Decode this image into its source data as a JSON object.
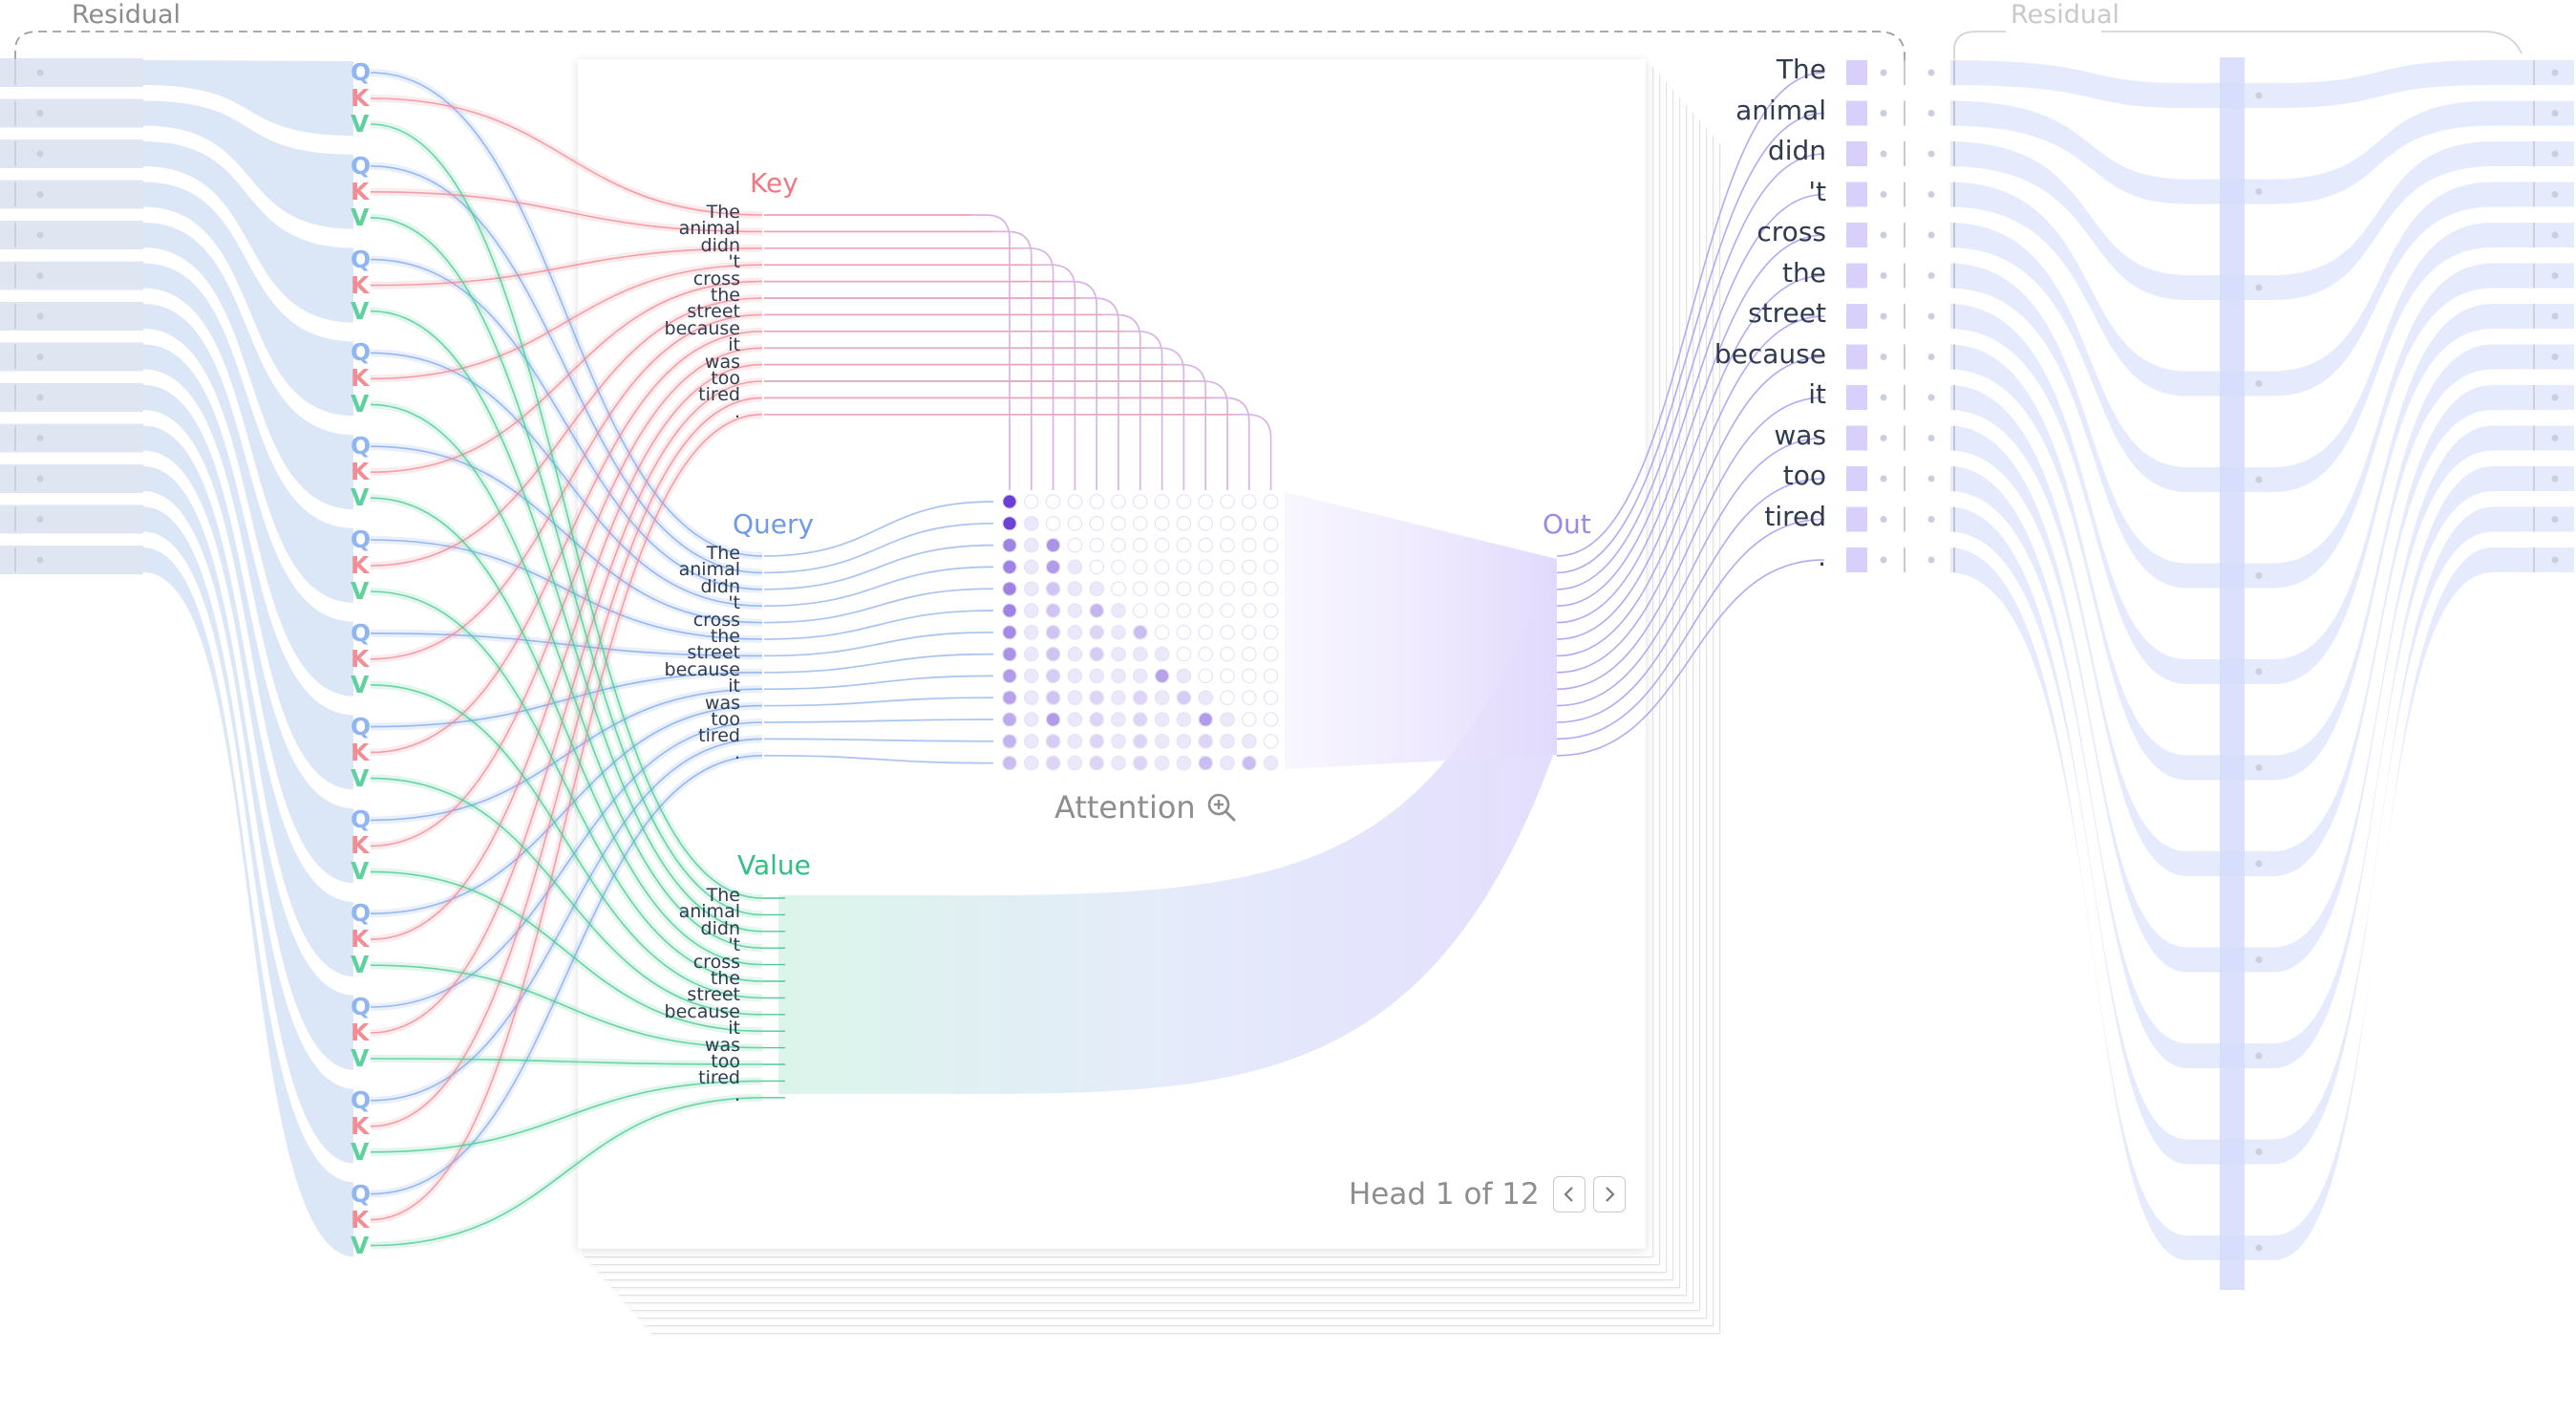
{
  "tokens": [
    "The",
    "animal",
    "didn",
    "'t",
    "cross",
    "the",
    "street",
    "because",
    "it",
    "was",
    "too",
    "tired",
    "."
  ],
  "residual": {
    "left_title": "Residual",
    "right_title": "Residual"
  },
  "qkv_letters": {
    "q": "Q",
    "k": "K",
    "v": "V"
  },
  "sections": {
    "key": "Key",
    "query": "Query",
    "value": "Value",
    "out": "Out"
  },
  "attention": {
    "label": "Attention",
    "zoom_icon": "zoom-in-icon"
  },
  "pager": {
    "text": "Head 1 of 12",
    "prev_icon": "chevron-left-icon",
    "next_icon": "chevron-right-icon"
  },
  "colors": {
    "query": "#7fa9ef",
    "key": "#f08b95",
    "value": "#4ccb94",
    "out": "#a895f0",
    "residual_fill": "#dbe6f7",
    "right_fill": "#e5eafd",
    "attention_dot": "#6a3fd6"
  },
  "attention_weights": [
    [
      1.0
    ],
    [
      0.95,
      0.0
    ],
    [
      0.55,
      0.0,
      0.45
    ],
    [
      0.55,
      0.0,
      0.4,
      0.0
    ],
    [
      0.55,
      0.0,
      0.15,
      0.0,
      0.0
    ],
    [
      0.55,
      0.0,
      0.15,
      0.0,
      0.25,
      0.0
    ],
    [
      0.5,
      0.0,
      0.15,
      0.0,
      0.05,
      0.0,
      0.2
    ],
    [
      0.45,
      0.0,
      0.15,
      0.0,
      0.1,
      0.0,
      0.0,
      0.0
    ],
    [
      0.4,
      0.0,
      0.1,
      0.0,
      0.0,
      0.0,
      0.0,
      0.35,
      0.0
    ],
    [
      0.35,
      0.0,
      0.15,
      0.0,
      0.05,
      0.0,
      0.05,
      0.0,
      0.1,
      0.0
    ],
    [
      0.3,
      0.0,
      0.4,
      0.0,
      0.05,
      0.0,
      0.05,
      0.0,
      0.0,
      0.4,
      0.0
    ],
    [
      0.25,
      0.0,
      0.1,
      0.0,
      0.05,
      0.0,
      0.05,
      0.0,
      0.0,
      0.05,
      0.0,
      0.0
    ],
    [
      0.2,
      0.0,
      0.05,
      0.0,
      0.05,
      0.0,
      0.05,
      0.0,
      0.0,
      0.2,
      0.0,
      0.2,
      0.0
    ]
  ]
}
